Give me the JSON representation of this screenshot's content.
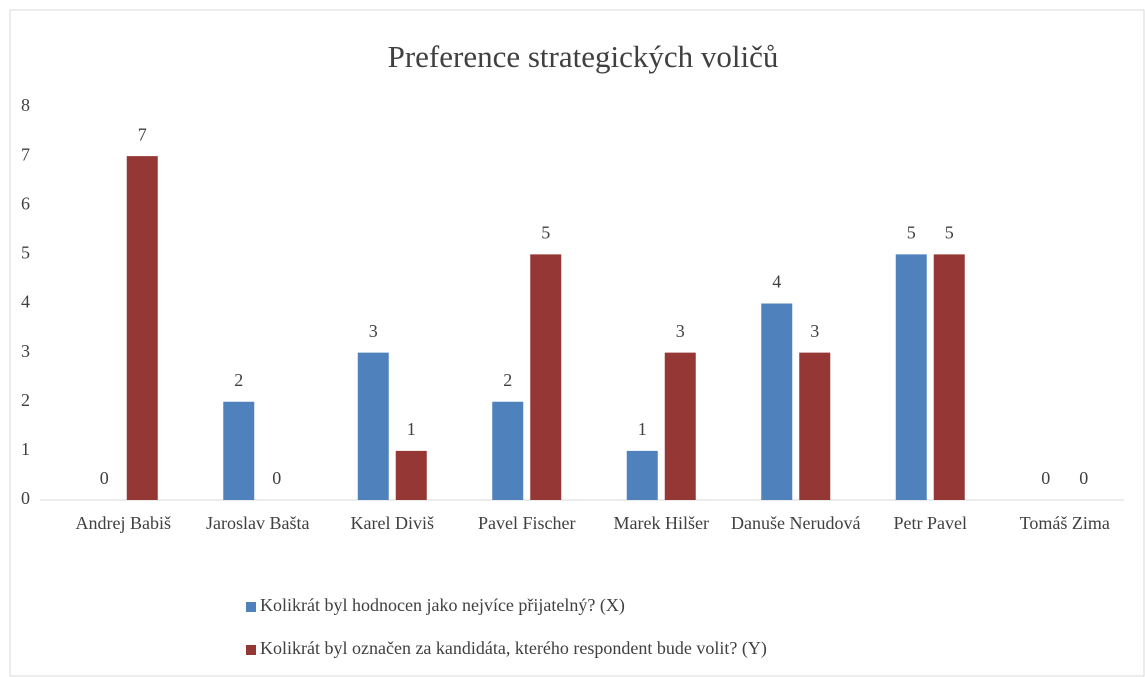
{
  "chart_data": {
    "type": "bar",
    "title": "Preference strategických voličů",
    "categories": [
      "Andrej Babiš",
      "Jaroslav Bašta",
      "Karel Diviš",
      "Pavel Fischer",
      "Marek Hilšer",
      "Danuše Nerudová",
      "Petr Pavel",
      "Tomáš Zima"
    ],
    "series": [
      {
        "name": "Kolikrát byl hodnocen jako nejvíce přijatelný? (X)",
        "color": "#4f81bd",
        "values": [
          0,
          2,
          3,
          2,
          1,
          4,
          5,
          0
        ]
      },
      {
        "name": "Kolikrát byl označen za kandidáta, kterého respondent bude volit? (Y)",
        "color": "#953735",
        "values": [
          7,
          0,
          1,
          5,
          3,
          3,
          5,
          0
        ]
      }
    ],
    "ylim": [
      0,
      8
    ],
    "yticks": [
      0,
      1,
      2,
      3,
      4,
      5,
      6,
      7,
      8
    ],
    "grid": false,
    "legend": "bottom"
  }
}
